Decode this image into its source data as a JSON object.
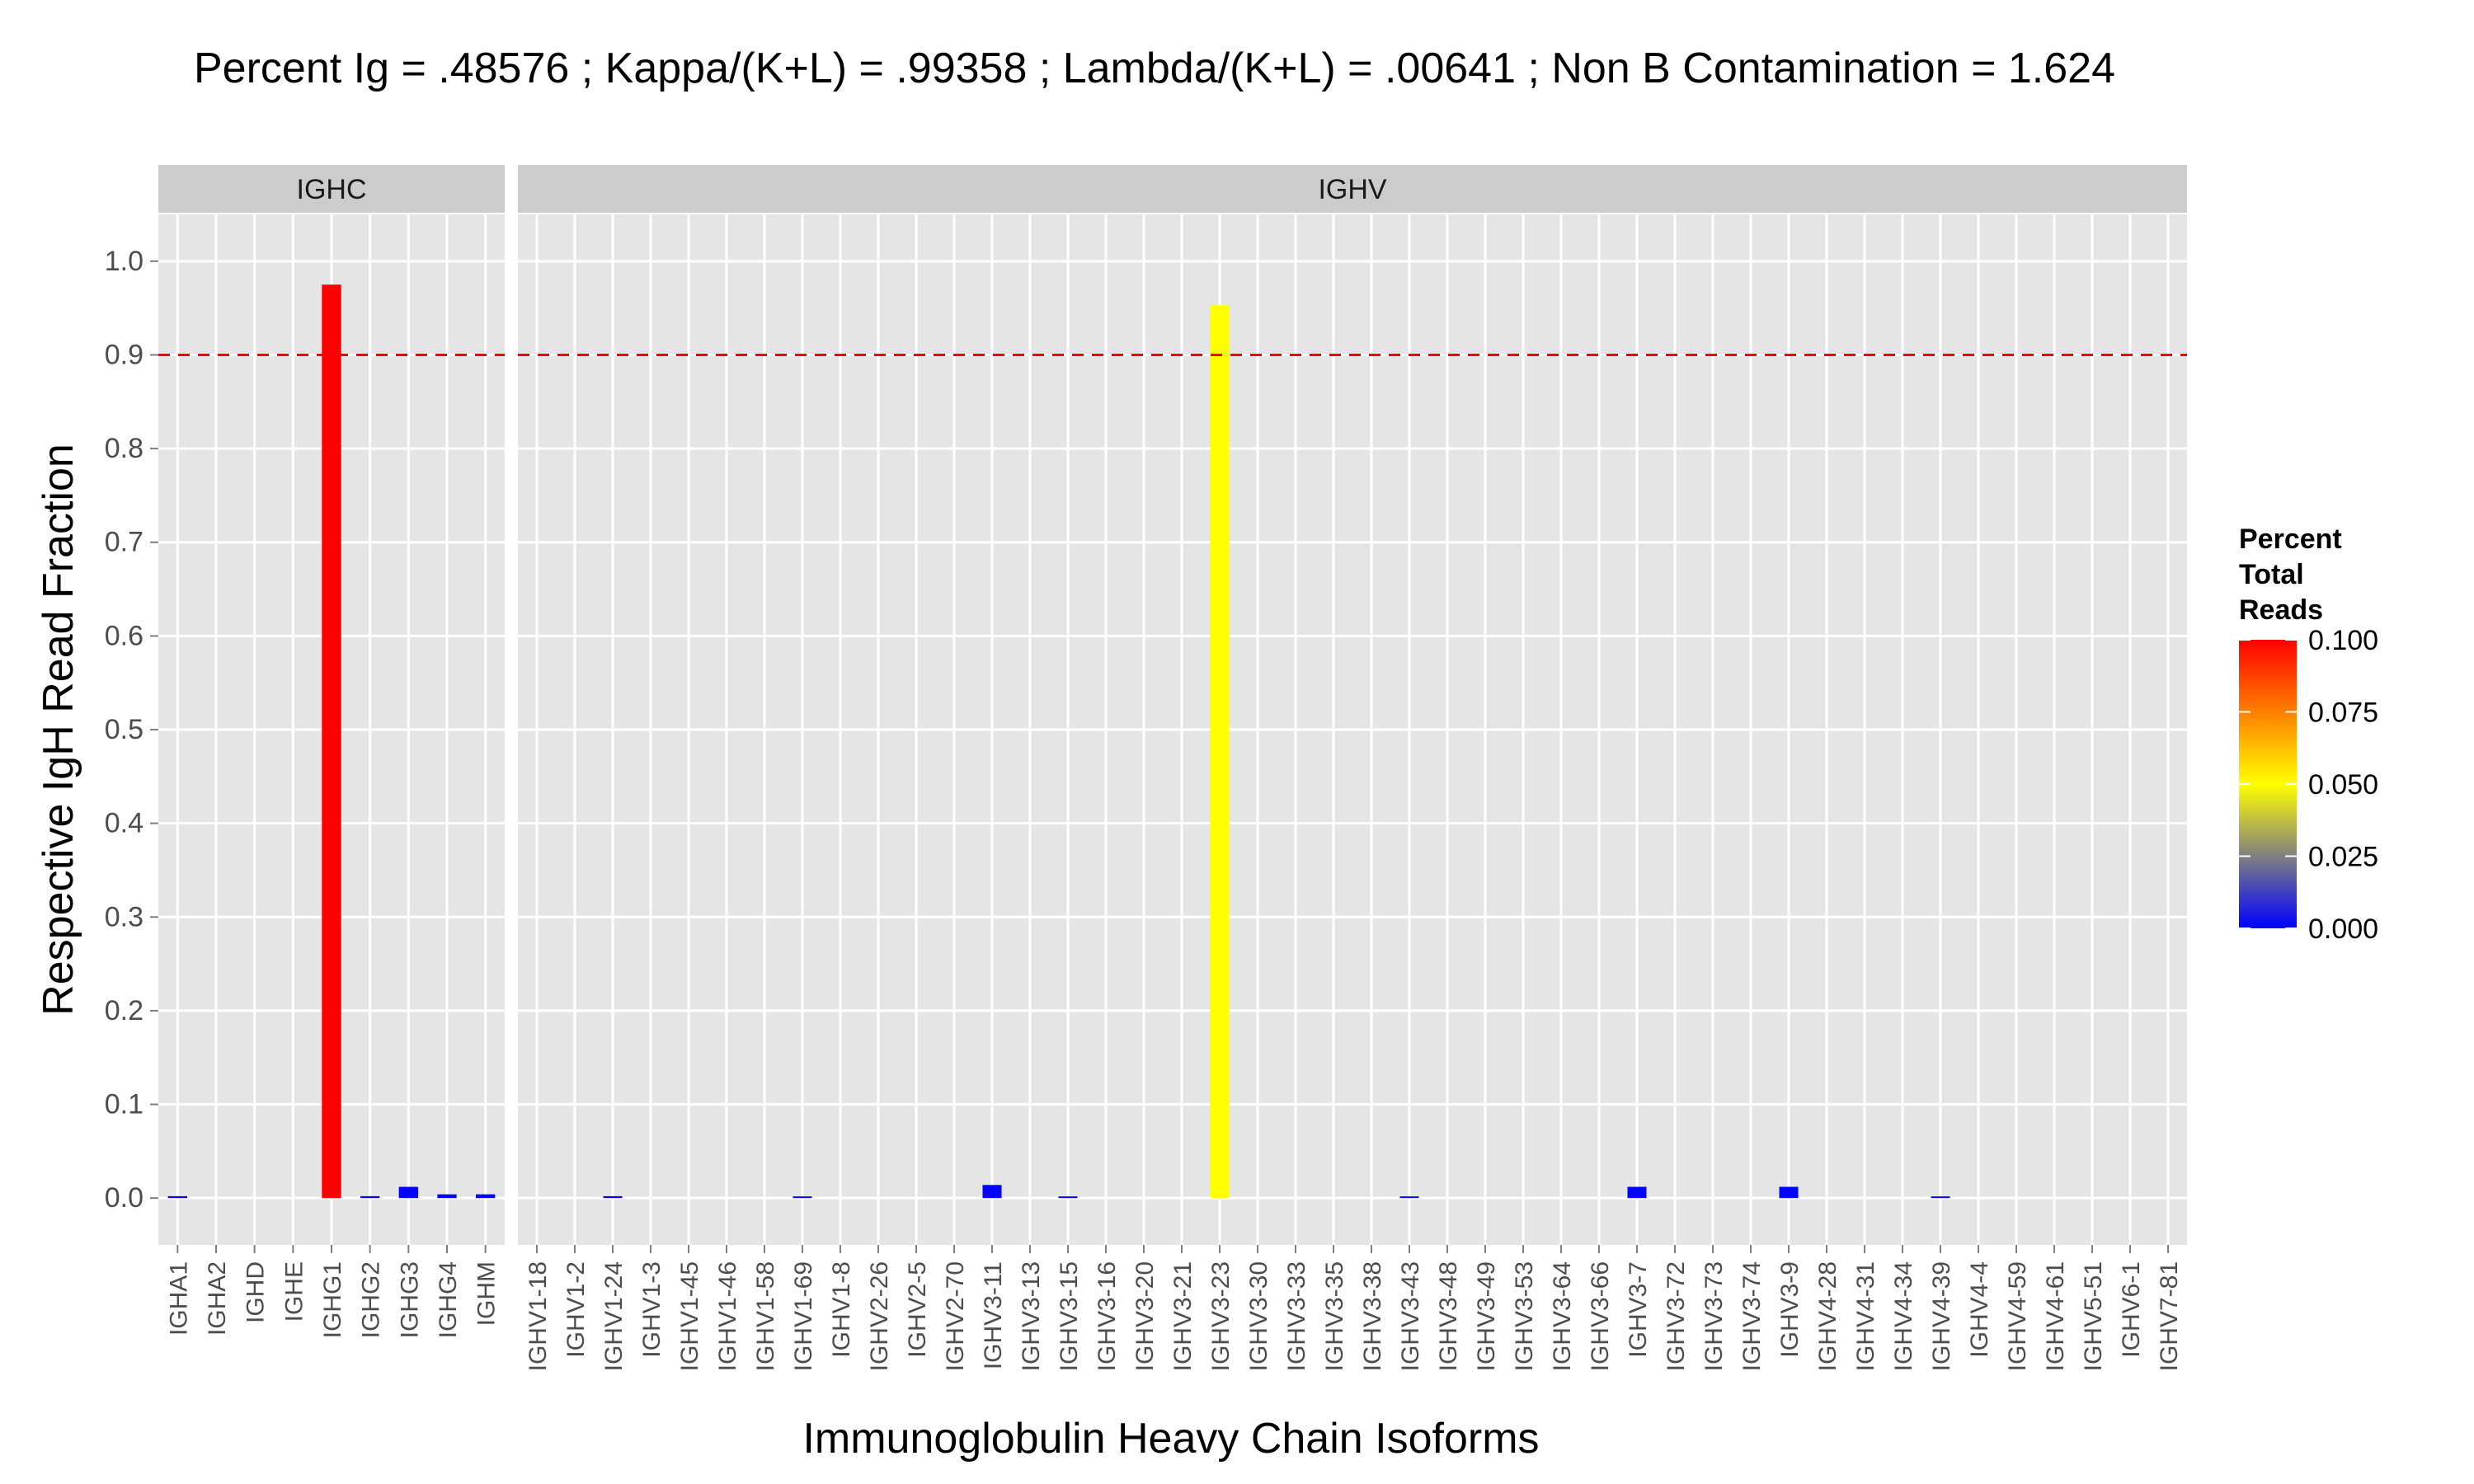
{
  "chart_data": {
    "type": "bar",
    "title": "Percent Ig = .48576 ; Kappa/(K+L) = .99358 ; Lambda/(K+L) = .00641 ; Non B Contamination = 1.624",
    "xlabel": "Immunoglobulin Heavy Chain Isoforms",
    "ylabel": "Respective IgH Read Fraction",
    "ylim": [
      -0.05,
      1.05
    ],
    "y_ticks": [
      "0.0",
      "0.1",
      "0.2",
      "0.3",
      "0.4",
      "0.5",
      "0.6",
      "0.7",
      "0.8",
      "0.9",
      "1.0"
    ],
    "y_tick_values": [
      0.0,
      0.1,
      0.2,
      0.3,
      0.4,
      0.5,
      0.6,
      0.7,
      0.8,
      0.9,
      1.0
    ],
    "threshold_line": {
      "value": 0.9,
      "color": "#ff0000",
      "style": "dashed"
    },
    "grid": true,
    "panels": [
      {
        "name": "IGHC",
        "categories": [
          "IGHA1",
          "IGHA2",
          "IGHD",
          "IGHE",
          "IGHG1",
          "IGHG2",
          "IGHG3",
          "IGHG4",
          "IGHM"
        ],
        "values": [
          0.002,
          0.0,
          0.0,
          0.0,
          0.975,
          0.002,
          0.012,
          0.004,
          0.004
        ],
        "color_values": [
          0.001,
          0.0,
          0.0,
          0.0,
          0.1,
          0.001,
          0.001,
          0.001,
          0.001
        ]
      },
      {
        "name": "IGHV",
        "categories": [
          "IGHV1-18",
          "IGHV1-2",
          "IGHV1-24",
          "IGHV1-3",
          "IGHV1-45",
          "IGHV1-46",
          "IGHV1-58",
          "IGHV1-69",
          "IGHV1-8",
          "IGHV2-26",
          "IGHV2-5",
          "IGHV2-70",
          "IGHV3-11",
          "IGHV3-13",
          "IGHV3-15",
          "IGHV3-16",
          "IGHV3-20",
          "IGHV3-21",
          "IGHV3-23",
          "IGHV3-30",
          "IGHV3-33",
          "IGHV3-35",
          "IGHV3-38",
          "IGHV3-43",
          "IGHV3-48",
          "IGHV3-49",
          "IGHV3-53",
          "IGHV3-64",
          "IGHV3-66",
          "IGHV3-7",
          "IGHV3-72",
          "IGHV3-73",
          "IGHV3-74",
          "IGHV3-9",
          "IGHV4-28",
          "IGHV4-31",
          "IGHV4-34",
          "IGHV4-39",
          "IGHV4-4",
          "IGHV4-59",
          "IGHV4-61",
          "IGHV5-51",
          "IGHV6-1",
          "IGHV7-81"
        ],
        "values": [
          0.0,
          0.0,
          0.002,
          0.0,
          0.0,
          0.0,
          0.0,
          0.001,
          0.0,
          0.0,
          0.0,
          0.0,
          0.014,
          0.0,
          0.001,
          0.0,
          0.0,
          0.0,
          0.953,
          0.0,
          0.0,
          0.0,
          0.0,
          0.001,
          0.0,
          0.0,
          0.0,
          0.0,
          0.0,
          0.012,
          0.0,
          0.0,
          0.0,
          0.012,
          0.0,
          0.0,
          0.0,
          0.001,
          0.0,
          0.0,
          0.0,
          0.0,
          0.0,
          0.0
        ],
        "color_values": [
          0.0,
          0.0,
          0.0005,
          0.0,
          0.0,
          0.0,
          0.0,
          0.0005,
          0.0,
          0.0,
          0.0,
          0.0,
          0.001,
          0.0,
          0.0005,
          0.0,
          0.0,
          0.0,
          0.05,
          0.0,
          0.0,
          0.0,
          0.0,
          0.0005,
          0.0,
          0.0,
          0.0,
          0.0,
          0.0,
          0.001,
          0.0,
          0.0,
          0.0,
          0.001,
          0.0,
          0.0,
          0.0,
          0.0005,
          0.0,
          0.0,
          0.0,
          0.0,
          0.0,
          0.0
        ]
      }
    ],
    "legend": {
      "title_lines": [
        "Percent",
        "Total",
        "Reads"
      ],
      "placement": "right",
      "ticks": [
        "0.100",
        "0.075",
        "0.050",
        "0.025",
        "0.000"
      ],
      "tick_values": [
        0.1,
        0.075,
        0.05,
        0.025,
        0.0
      ],
      "range": [
        0.0,
        0.1
      ],
      "gradient_colors": [
        "#0000ff",
        "#808080",
        "#ffff00",
        "#ff0000"
      ]
    },
    "colors": {
      "panel_background": "#e5e5e5",
      "grid_major": "#ffffff",
      "strip_background": "#cccccc",
      "axis_text": "#4d4d4d"
    }
  }
}
